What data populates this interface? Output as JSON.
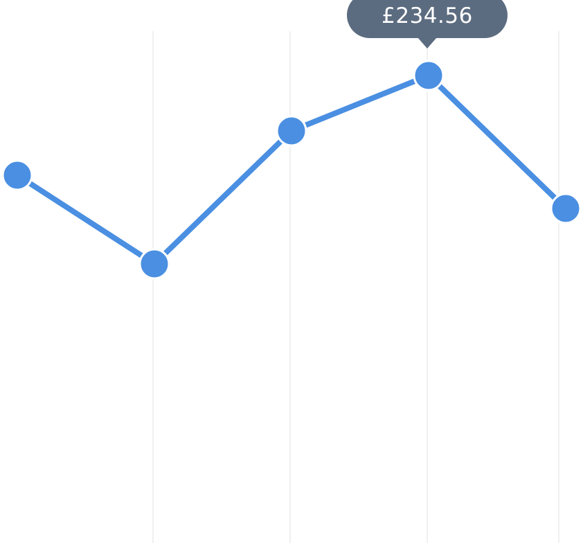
{
  "chart_data": {
    "type": "line",
    "x": [
      0,
      1,
      2,
      3,
      4
    ],
    "series": [
      {
        "values": [
          180,
          100,
          220,
          270,
          150
        ]
      }
    ],
    "grid": "vertical",
    "legend": "none",
    "colors": {
      "line": "#4a8fe2",
      "point": "#4a8fe2",
      "point_stroke": "#ffffff",
      "tooltip_bg": "#5c6c80",
      "tooltip_text": "#ffffff",
      "gridline": "#ebebeb"
    },
    "tooltip": {
      "point_index": 3,
      "text": "£234.56"
    }
  }
}
